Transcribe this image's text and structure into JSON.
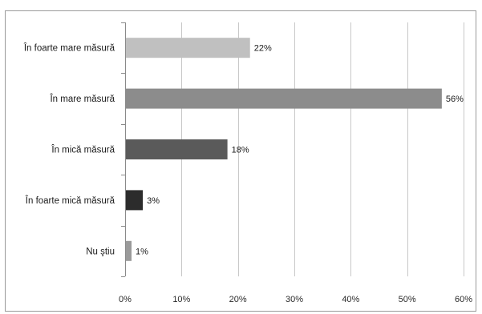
{
  "chart_data": {
    "type": "bar",
    "orientation": "horizontal",
    "title": "",
    "xlabel": "",
    "ylabel": "",
    "categories": [
      "În foarte mare măsură",
      "În mare măsură",
      "În mică măsură",
      "În foarte mică măsură",
      "Nu ştiu"
    ],
    "values": [
      22,
      56,
      18,
      3,
      1
    ],
    "data_labels": [
      "22%",
      "56%",
      "18%",
      "3%",
      "1%"
    ],
    "bar_colors": [
      "#c0c0c0",
      "#8c8c8c",
      "#5a5a5a",
      "#2c2c2c",
      "#9a9a9a"
    ],
    "xlim": [
      0,
      60
    ],
    "x_ticks": [
      0,
      10,
      20,
      30,
      40,
      50,
      60
    ],
    "x_tick_labels": [
      "0%",
      "10%",
      "20%",
      "30%",
      "40%",
      "50%",
      "60%"
    ],
    "grid": true,
    "legend": false
  }
}
